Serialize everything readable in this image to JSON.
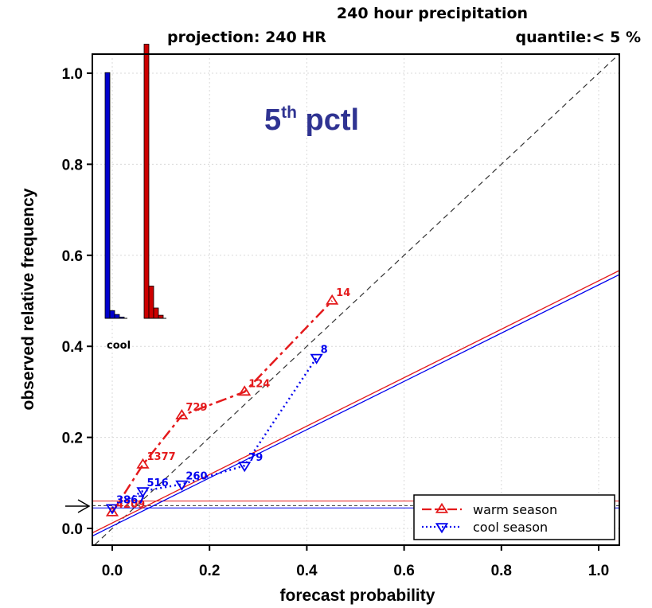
{
  "chart_data": {
    "type": "line",
    "title_line1": "240  hour precipitation",
    "projection": "projection: 240 HR",
    "quantile": "quantile:< 5 %",
    "xlabel": "forecast probability",
    "ylabel": "observed relative frequency",
    "xlim": [
      0,
      1
    ],
    "ylim": [
      0,
      1
    ],
    "xticks": [
      "0.0",
      "0.2",
      "0.4",
      "0.6",
      "0.8",
      "1.0"
    ],
    "yticks": [
      "0.0",
      "0.2",
      "0.4",
      "0.6",
      "0.8",
      "1.0"
    ],
    "grid": true,
    "legend_position": "bottom-right",
    "annotation_main": "5",
    "annotation_sup": "th",
    "annotation_rest": " pctl",
    "inset_label": "cool",
    "series": [
      {
        "name": "warm season",
        "color": "#e41a1c",
        "marker": "triangle-up",
        "linestyle": "dashed",
        "x": [
          0.0,
          0.063,
          0.143,
          0.272,
          0.452
        ],
        "y": [
          0.035,
          0.14,
          0.248,
          0.3,
          0.5
        ],
        "labels": [
          "4209",
          "1377",
          "729",
          "124",
          "14"
        ],
        "regression": [
          0.012,
          0.532
        ],
        "climatology": 0.06
      },
      {
        "name": "cool season",
        "color": "#0000ee",
        "marker": "triangle-down",
        "linestyle": "dotted",
        "x": [
          0.0,
          0.063,
          0.143,
          0.272,
          0.42
        ],
        "y": [
          0.045,
          0.082,
          0.097,
          0.138,
          0.375
        ],
        "labels": [
          "3867",
          "516",
          "260",
          "79",
          "8"
        ],
        "regression": [
          0.005,
          0.53
        ],
        "climatology": 0.045
      }
    ],
    "sample_climatology": 0.05,
    "histograms": [
      {
        "season": "cool",
        "color": "#0000cc",
        "values": [
          0.95,
          0.03,
          0.015,
          0.005
        ]
      },
      {
        "season": "warm",
        "color": "#cc0000",
        "values": [
          1.06,
          0.125,
          0.04,
          0.012
        ]
      }
    ]
  }
}
